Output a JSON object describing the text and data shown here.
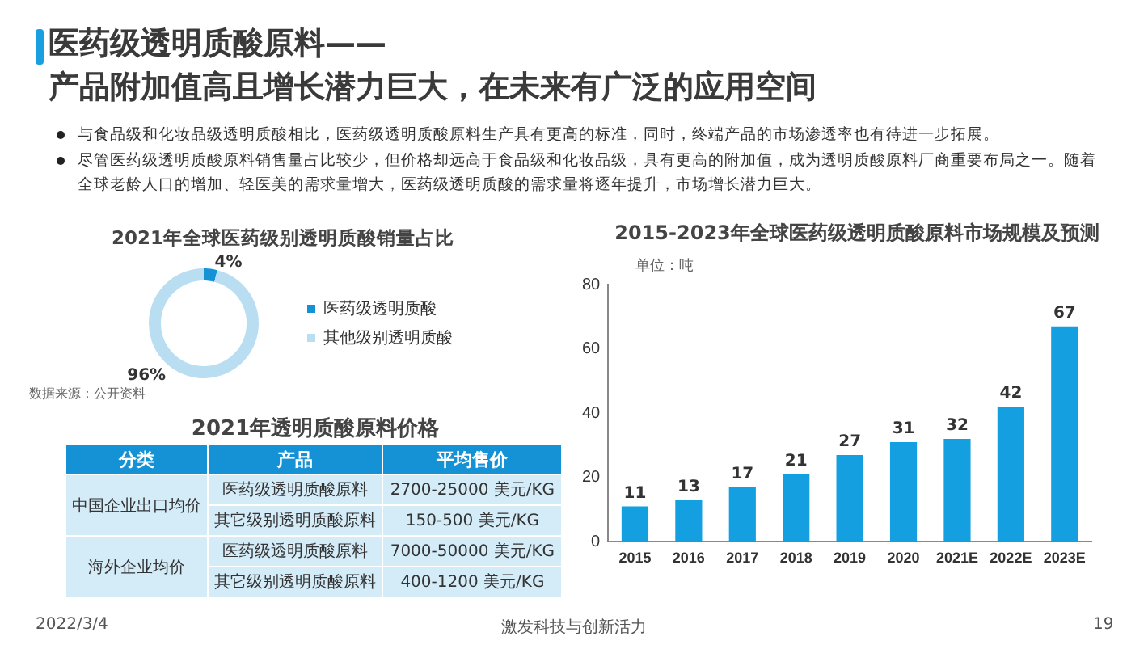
{
  "chart_data": [
    {
      "type": "other",
      "title": "医药级透明质酸原料——\n产品附加值高且增长潜力巨大，在未来有广泛的应用空间",
      "annotations": [
        "与食品级和化妆品级透明质酸相比，医药级透明质酸原料生产具有更高的标准，同时，终端产品的市场渗透率也有待进一步拓展。",
        "尽管医药级透明质酸原料销售量占比较少，但价格却远高于食品级和化妆品级，具有更高的附加值，成为透明质酸原料厂商重要布局之一。随着全球老龄人口的增加、轻医美的需求量增大，医药级透明质酸的需求量将逐年提升，市场增长潜力巨大。",
        "2022/3/4",
        "激发科技与创新活力",
        "19"
      ]
    },
    {
      "type": "donut",
      "title": "2021年全球医药级别透明质酸销量占比",
      "categories": [
        "医药级透明质酸",
        "其他级别透明质酸"
      ],
      "values": [
        4,
        96
      ],
      "colors": [
        "#1592d6",
        "#b9def2"
      ],
      "value_labels": [
        "4%",
        "96%"
      ],
      "legend": "right",
      "annotations": [
        "数据来源：公开资料"
      ]
    },
    {
      "type": "other",
      "title": "2021年透明质酸原料价格",
      "categories": [
        "分类",
        "产品",
        "平均售价"
      ],
      "cell_labels": [
        [
          "中国企业出口均价",
          "医药级透明质酸原料",
          "2700-25000 美元/KG"
        ],
        [
          null,
          "其它级别透明质酸原料",
          "150-500 美元/KG"
        ],
        [
          "海外企业均价",
          "医药级透明质酸原料",
          "7000-50000 美元/KG"
        ],
        [
          null,
          "其它级别透明质酸原料",
          "400-1200 美元/KG"
        ]
      ]
    },
    {
      "type": "bar",
      "title": "2015-2023年全球医药级透明质酸原料市场规模及预测",
      "annotations": [
        "单位：吨"
      ],
      "categories": [
        "2015",
        "2016",
        "2017",
        "2018",
        "2019",
        "2020",
        "2021E",
        "2022E",
        "2023E"
      ],
      "values": [
        11,
        13,
        17,
        21,
        27,
        31,
        32,
        42,
        67
      ],
      "color": "#14a0e0",
      "ylim": [
        0,
        80
      ],
      "yticks": [
        0,
        20,
        40,
        60,
        80
      ],
      "data_labels": true,
      "grid": false
    }
  ]
}
